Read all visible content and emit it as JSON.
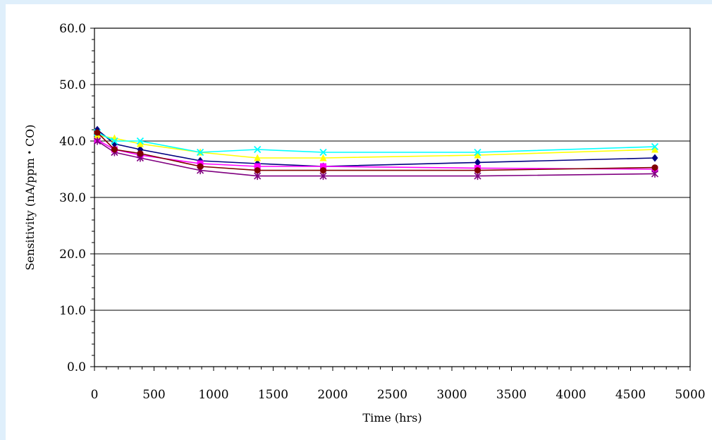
{
  "chart_data": {
    "type": "line",
    "title": "",
    "xlabel": "Time (hrs)",
    "ylabel": "Sensitivity (nA/ppm・CO)",
    "xlim": [
      0,
      5000
    ],
    "ylim": [
      0,
      60
    ],
    "x_ticks": [
      0,
      500,
      1000,
      1500,
      2000,
      2500,
      3000,
      3500,
      4000,
      4500,
      5000
    ],
    "x_tick_labels": [
      "0",
      "500",
      "1000",
      "1500",
      "2000",
      "2500",
      "3000",
      "3500",
      "4000",
      "4500",
      "5000"
    ],
    "y_ticks": [
      0,
      10,
      20,
      30,
      40,
      50,
      60
    ],
    "y_tick_labels": [
      "0.0",
      "10.0",
      "20.0",
      "30.0",
      "40.0",
      "50.0",
      "60.0"
    ],
    "grid": "horizontal major lines",
    "legend": "none",
    "series": [
      {
        "color": "#000080",
        "marker": "diamond",
        "points": [
          [
            24,
            42.0
          ],
          [
            168,
            39.5
          ],
          [
            384,
            38.5
          ],
          [
            888,
            36.5
          ],
          [
            1368,
            36.0
          ],
          [
            1920,
            35.5
          ],
          [
            3216,
            36.2
          ],
          [
            4704,
            37.0
          ]
        ]
      },
      {
        "color": "#ff00ff",
        "marker": "square",
        "points": [
          [
            24,
            40.2
          ],
          [
            168,
            38.5
          ],
          [
            384,
            37.5
          ],
          [
            888,
            36.0
          ],
          [
            1368,
            35.5
          ],
          [
            1920,
            35.5
          ],
          [
            3216,
            35.2
          ],
          [
            4704,
            35.0
          ]
        ]
      },
      {
        "color": "#ffff00",
        "marker": "triangle",
        "points": [
          [
            24,
            41.0
          ],
          [
            168,
            40.5
          ],
          [
            384,
            39.5
          ],
          [
            888,
            38.0
          ],
          [
            1368,
            37.0
          ],
          [
            1920,
            37.0
          ],
          [
            3216,
            37.5
          ],
          [
            4704,
            38.5
          ]
        ]
      },
      {
        "color": "#00ffff",
        "marker": "x",
        "points": [
          [
            24,
            41.5
          ],
          [
            168,
            40.0
          ],
          [
            384,
            40.0
          ],
          [
            888,
            38.0
          ],
          [
            1368,
            38.5
          ],
          [
            1920,
            38.0
          ],
          [
            3216,
            38.0
          ],
          [
            4704,
            39.0
          ]
        ]
      },
      {
        "color": "#800080",
        "marker": "asterisk",
        "points": [
          [
            24,
            40.0
          ],
          [
            168,
            38.0
          ],
          [
            384,
            37.0
          ],
          [
            888,
            34.8
          ],
          [
            1368,
            33.8
          ],
          [
            1920,
            33.8
          ],
          [
            3216,
            33.8
          ],
          [
            4704,
            34.2
          ]
        ]
      },
      {
        "color": "#800000",
        "marker": "circle",
        "points": [
          [
            24,
            41.5
          ],
          [
            168,
            38.5
          ],
          [
            384,
            37.8
          ],
          [
            888,
            35.5
          ],
          [
            1368,
            34.8
          ],
          [
            1920,
            34.8
          ],
          [
            3216,
            34.8
          ],
          [
            4704,
            35.3
          ]
        ]
      }
    ]
  }
}
